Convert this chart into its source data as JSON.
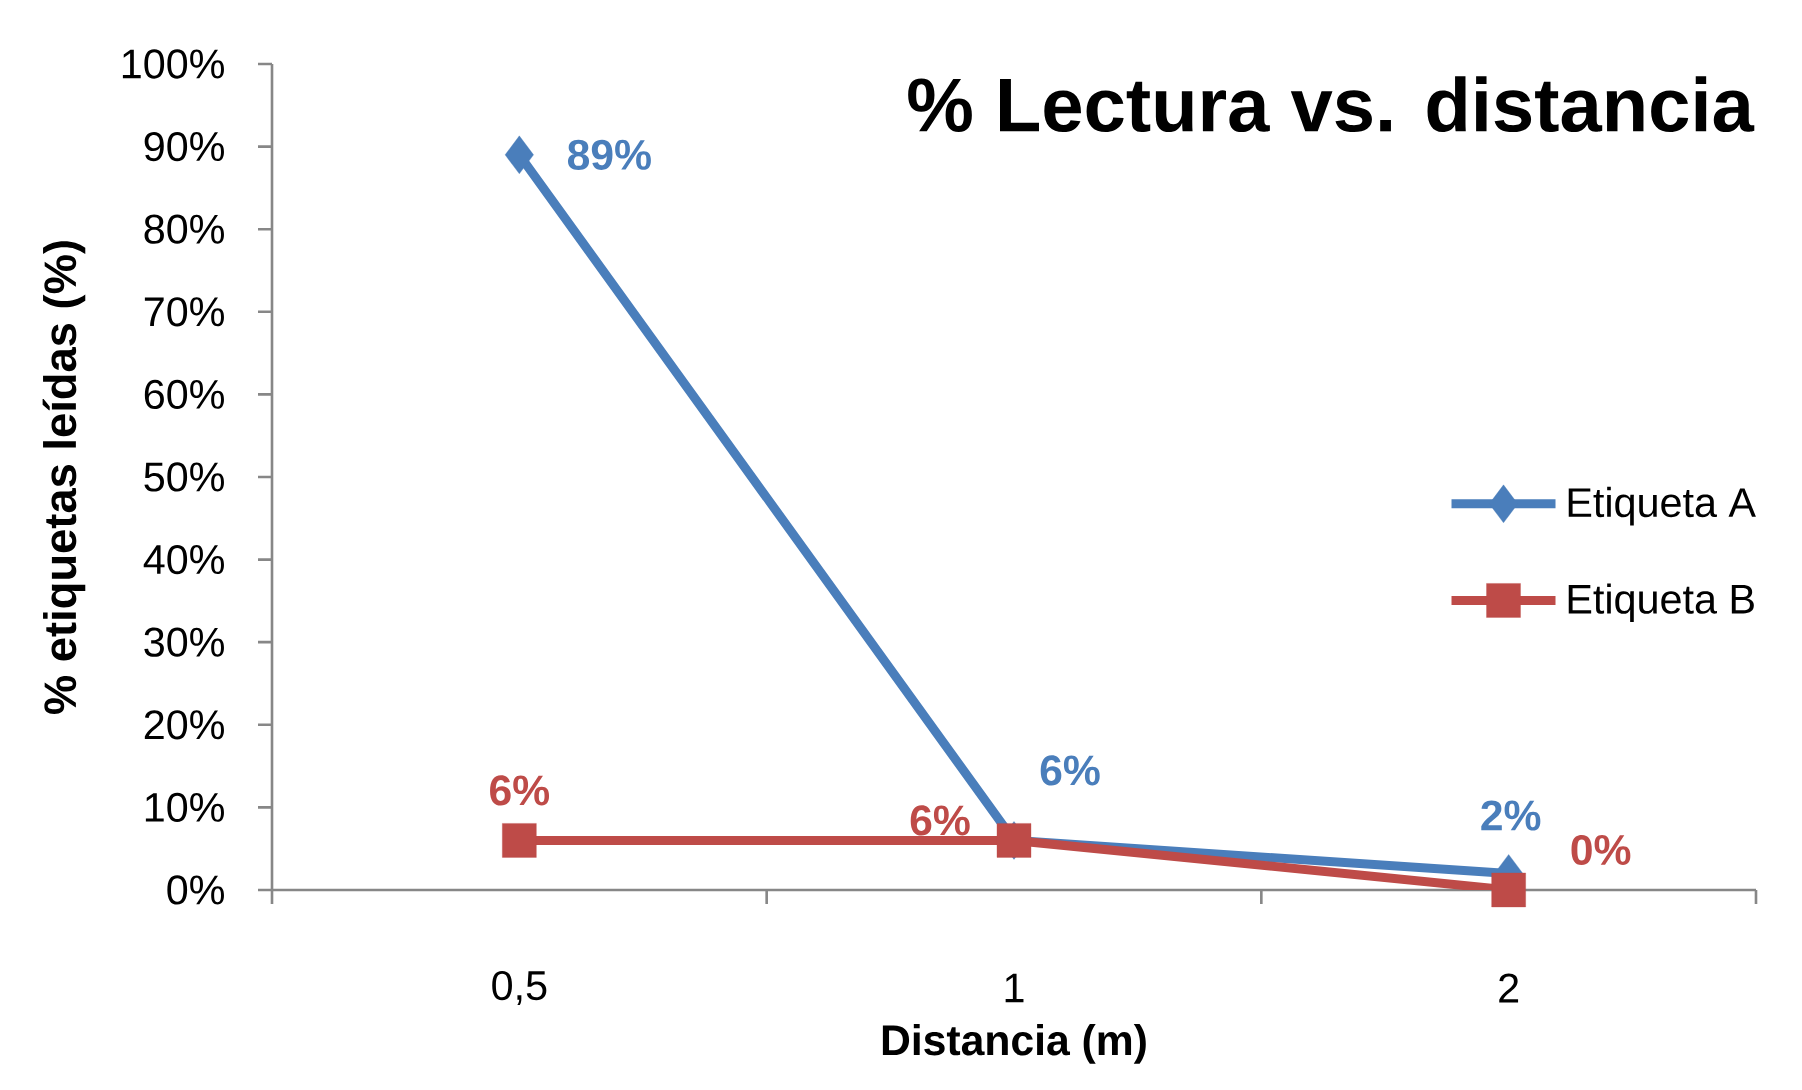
{
  "chart_data": {
    "type": "line",
    "title": "% Lectura vs. distancia",
    "xlabel": "Distancia (m)",
    "ylabel": "% etiquetas leídas (%)",
    "categories": [
      "0,5",
      "1",
      "2"
    ],
    "series": [
      {
        "name": "Etiqueta A",
        "color": "#4a7ebb",
        "marker": "diamond",
        "values": [
          89,
          6,
          2
        ],
        "value_labels": [
          "89%",
          "6%",
          "2%"
        ]
      },
      {
        "name": "Etiqueta B",
        "color": "#be4b48",
        "marker": "square",
        "values": [
          6,
          6,
          0
        ],
        "value_labels": [
          "6%",
          "6%",
          "0%"
        ]
      }
    ],
    "ylim": [
      0,
      100
    ],
    "yticks": [
      {
        "value": 0,
        "label": "0%"
      },
      {
        "value": 10,
        "label": "10%"
      },
      {
        "value": 20,
        "label": "20%"
      },
      {
        "value": 30,
        "label": "30%"
      },
      {
        "value": 40,
        "label": "40%"
      },
      {
        "value": 50,
        "label": "50%"
      },
      {
        "value": 60,
        "label": "60%"
      },
      {
        "value": 70,
        "label": "70%"
      },
      {
        "value": 80,
        "label": "80%"
      },
      {
        "value": 90,
        "label": "90%"
      },
      {
        "value": 100,
        "label": "100%"
      }
    ],
    "legend": "right"
  }
}
